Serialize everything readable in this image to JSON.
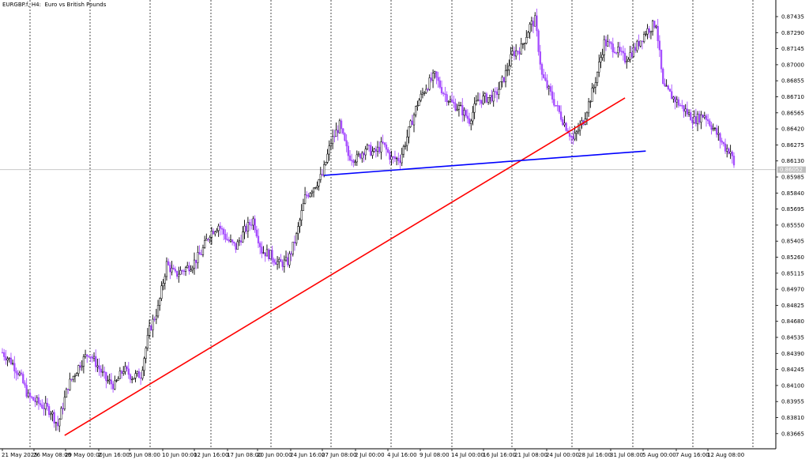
{
  "header": {
    "symbol": "EURGBP.f",
    "timeframe": "H4",
    "description": "Euro vs British Pounds"
  },
  "chart_data": {
    "type": "candlestick",
    "title": "EURGBP.f, H4: Euro vs British Pounds",
    "ylim": [
      0.8358,
      0.875
    ],
    "y_ticks": [
      "0.87435",
      "0.87290",
      "0.87145",
      "0.87000",
      "0.86855",
      "0.86710",
      "0.86565",
      "0.86420",
      "0.86275",
      "0.86130",
      "0.85985",
      "0.85840",
      "0.85695",
      "0.85550",
      "0.85405",
      "0.85260",
      "0.85115",
      "0.84970",
      "0.84825",
      "0.84680",
      "0.84535",
      "0.84390",
      "0.84245",
      "0.84100",
      "0.83955",
      "0.83810",
      "0.83665"
    ],
    "x_ticks": [
      "21 May 2025",
      "26 May 08:00",
      "29 May 00:00",
      "2 Jun 16:00",
      "5 Jun 08:00",
      "10 Jun 00:00",
      "12 Jun 16:00",
      "17 Jun 08:00",
      "20 Jun 00:00",
      "24 Jun 16:00",
      "27 Jun 08:00",
      "2 Jul 00:00",
      "4 Jul 16:00",
      "9 Jul 08:00",
      "14 Jul 00:00",
      "16 Jul 16:00",
      "21 Jul 08:00",
      "24 Jul 00:00",
      "28 Jul 16:00",
      "31 Jul 08:00",
      "5 Aug 00:00",
      "7 Aug 16:00",
      "12 Aug 08:00"
    ],
    "current_price": "0.86052",
    "price_path": [
      [
        0,
        0.844
      ],
      [
        5,
        0.8432
      ],
      [
        10,
        0.842
      ],
      [
        15,
        0.84
      ],
      [
        20,
        0.8395
      ],
      [
        25,
        0.839
      ],
      [
        28,
        0.8387
      ],
      [
        32,
        0.8374
      ],
      [
        38,
        0.841
      ],
      [
        45,
        0.843
      ],
      [
        50,
        0.844
      ],
      [
        55,
        0.8428
      ],
      [
        60,
        0.8415
      ],
      [
        65,
        0.841
      ],
      [
        70,
        0.8425
      ],
      [
        75,
        0.8418
      ],
      [
        80,
        0.842
      ],
      [
        85,
        0.846
      ],
      [
        90,
        0.848
      ],
      [
        95,
        0.852
      ],
      [
        100,
        0.851
      ],
      [
        105,
        0.8515
      ],
      [
        110,
        0.852
      ],
      [
        115,
        0.853
      ],
      [
        120,
        0.8548
      ],
      [
        125,
        0.8555
      ],
      [
        130,
        0.8542
      ],
      [
        135,
        0.8535
      ],
      [
        140,
        0.855
      ],
      [
        145,
        0.856
      ],
      [
        150,
        0.8532
      ],
      [
        155,
        0.8528
      ],
      [
        160,
        0.852
      ],
      [
        165,
        0.8522
      ],
      [
        170,
        0.8545
      ],
      [
        175,
        0.858
      ],
      [
        180,
        0.859
      ],
      [
        185,
        0.86
      ],
      [
        190,
        0.863
      ],
      [
        195,
        0.8645
      ],
      [
        200,
        0.8618
      ],
      [
        205,
        0.8615
      ],
      [
        210,
        0.8625
      ],
      [
        215,
        0.862
      ],
      [
        220,
        0.8628
      ],
      [
        225,
        0.8615
      ],
      [
        230,
        0.8615
      ],
      [
        235,
        0.864
      ],
      [
        240,
        0.8665
      ],
      [
        245,
        0.868
      ],
      [
        250,
        0.869
      ],
      [
        255,
        0.8675
      ],
      [
        260,
        0.8665
      ],
      [
        265,
        0.866
      ],
      [
        270,
        0.865
      ],
      [
        275,
        0.8668
      ],
      [
        280,
        0.867
      ],
      [
        285,
        0.8672
      ],
      [
        290,
        0.8688
      ],
      [
        295,
        0.871
      ],
      [
        300,
        0.8715
      ],
      [
        305,
        0.8735
      ],
      [
        308,
        0.874
      ],
      [
        312,
        0.869
      ],
      [
        318,
        0.867
      ],
      [
        324,
        0.865
      ],
      [
        330,
        0.8632
      ],
      [
        336,
        0.865
      ],
      [
        342,
        0.868
      ],
      [
        348,
        0.872
      ],
      [
        354,
        0.8715
      ],
      [
        360,
        0.8705
      ],
      [
        366,
        0.8715
      ],
      [
        372,
        0.873
      ],
      [
        378,
        0.8738
      ],
      [
        382,
        0.868
      ],
      [
        388,
        0.867
      ],
      [
        394,
        0.866
      ],
      [
        400,
        0.865
      ],
      [
        406,
        0.8655
      ],
      [
        412,
        0.864
      ],
      [
        418,
        0.8625
      ],
      [
        421,
        0.8622
      ],
      [
        423,
        0.8608
      ]
    ],
    "trendlines": [
      {
        "color": "#ff0000",
        "from": {
          "x": "2025-05-29",
          "y": 0.8365
        },
        "to": {
          "x": "2025-08-11",
          "y": 0.867
        }
      },
      {
        "color": "#0000ff",
        "from": {
          "x": "2025-07-01",
          "y": 0.86
        },
        "to": {
          "x": "2025-08-15",
          "y": 0.8622
        }
      }
    ],
    "grid": "vertical dashed",
    "colors": {
      "bull": "#000000",
      "bear": "#a64dff",
      "bull_body": "#ffffff",
      "price_line": "#c0c0c0"
    }
  }
}
